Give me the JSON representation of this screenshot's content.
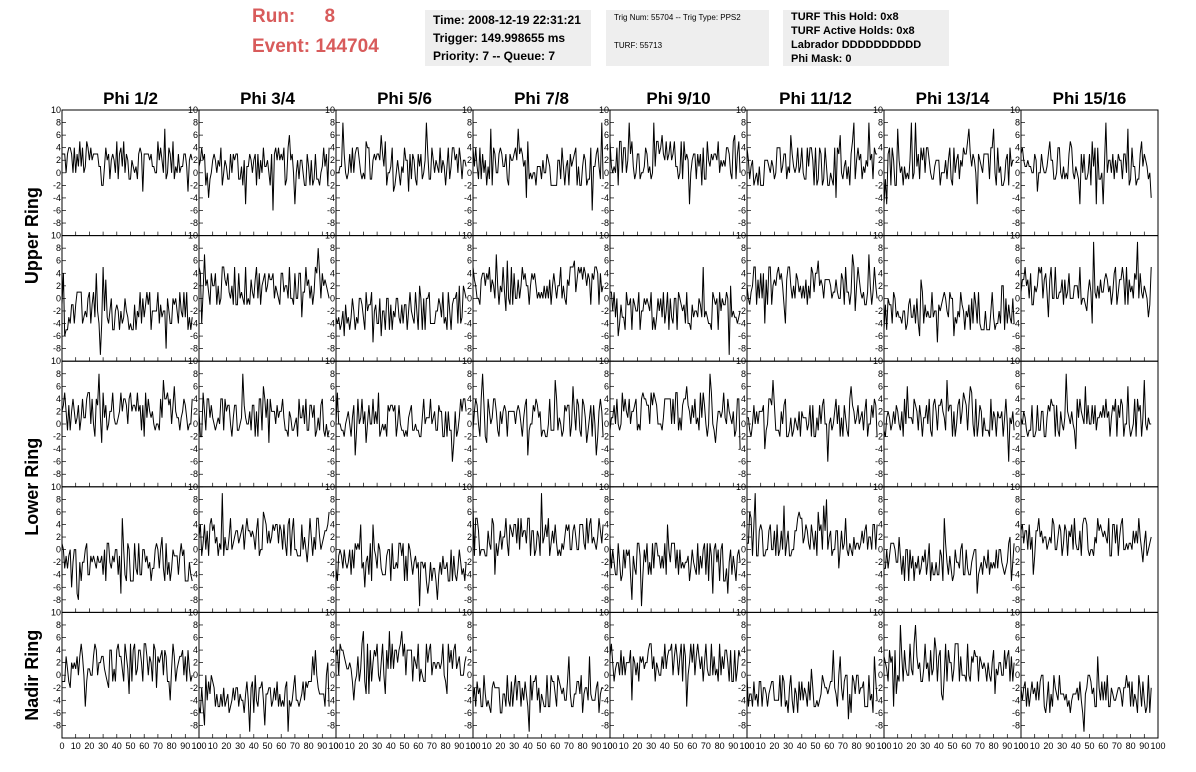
{
  "header": {
    "run_label": "Run:",
    "run_value": "8",
    "event_label": "Event:",
    "event_value": "144704",
    "time": "Time: 2008-12-19 22:31:21",
    "trigger": "Trigger: 149.998655 ms",
    "priority": "Priority: 7 -- Queue: 7",
    "trig_num": "Trig Num: 55704 -- Trig Type: PPS2",
    "turf": "TURF: 55713",
    "turf_this_hold": "TURF This Hold: 0x8",
    "turf_active_holds": "TURF Active Holds: 0x8",
    "labrador": "Labrador DDDDDDDDDD",
    "phi_mask": "Phi Mask: 0"
  },
  "colors": {
    "accent": "#d85b5b",
    "panel_bg": "#eeeeee",
    "trace": "#000000"
  },
  "chart_data": {
    "type": "line",
    "layout": "grid of 5 rows x 8 columns of waveform panels",
    "columns": [
      "Phi 1/2",
      "Phi 3/4",
      "Phi 5/6",
      "Phi 7/8",
      "Phi 9/10",
      "Phi 11/12",
      "Phi 13/14",
      "Phi 15/16"
    ],
    "row_labels": [
      "Upper Ring",
      "Lower Ring",
      "Nadir Ring"
    ],
    "row_label_spans": [
      [
        0,
        1
      ],
      [
        2,
        3
      ],
      [
        4,
        4
      ]
    ],
    "xlim": [
      0,
      100
    ],
    "ylim": [
      -10,
      10
    ],
    "x_ticks": [
      0,
      10,
      20,
      30,
      40,
      50,
      60,
      70,
      80,
      90,
      100
    ],
    "y_ticks": [
      -8,
      -6,
      -4,
      -2,
      0,
      2,
      4,
      6,
      8,
      10
    ],
    "grid": false,
    "samples_per_trace": 96,
    "trace_baselines": [
      [
        2,
        1,
        1,
        1,
        2,
        1,
        1,
        1
      ],
      [
        -2,
        2,
        -2,
        2,
        -2,
        2,
        -2,
        2
      ],
      [
        2,
        1,
        1,
        1,
        2,
        1,
        1,
        1
      ],
      [
        -2,
        2,
        -2,
        2,
        -2,
        2,
        -2,
        2
      ],
      [
        2,
        -3,
        2,
        -3,
        2,
        -3,
        2,
        -3
      ]
    ],
    "trace_amplitude_typical": 2,
    "trace_amplitude_peak": 8
  }
}
